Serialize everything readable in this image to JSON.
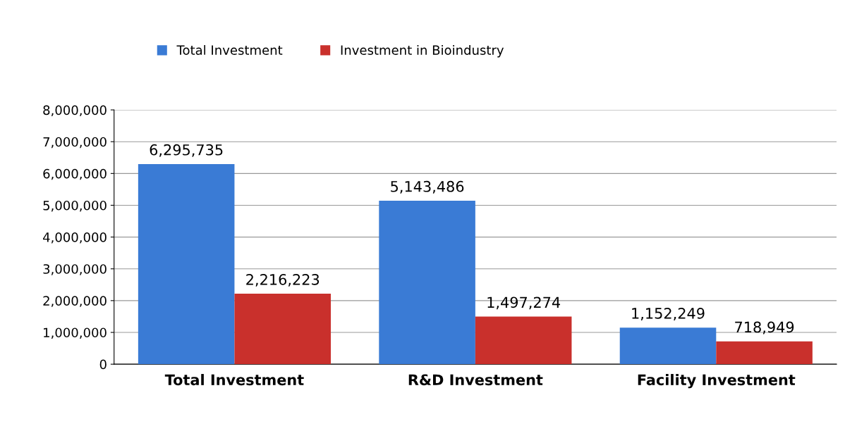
{
  "chart_data": {
    "type": "bar",
    "categories": [
      "Total Investment",
      "R&D Investment",
      "Facility Investment"
    ],
    "series": [
      {
        "name": "Total Investment",
        "color": "#3a7bd5",
        "values": [
          6295735,
          5143486,
          1152249
        ],
        "value_labels": [
          "6,295,735",
          "5,143,486",
          "1,152,249"
        ]
      },
      {
        "name": "Investment in Bioindustry",
        "color": "#c9302c",
        "values": [
          2216223,
          1497274,
          718949
        ],
        "value_labels": [
          "2,216,223",
          "1,497,274",
          "718,949"
        ]
      }
    ],
    "ylim": [
      0,
      8000000
    ],
    "yticks": [
      {
        "value": 0,
        "label": "0"
      },
      {
        "value": 1000000,
        "label": "1,000,000"
      },
      {
        "value": 2000000,
        "label": "2,000,000"
      },
      {
        "value": 3000000,
        "label": "3,000,000"
      },
      {
        "value": 4000000,
        "label": "4,000,000"
      },
      {
        "value": 5000000,
        "label": "5,000,000"
      },
      {
        "value": 6000000,
        "label": "6,000,000"
      },
      {
        "value": 7000000,
        "label": "7,000,000"
      },
      {
        "value": 8000000,
        "label": "8,000,000"
      }
    ],
    "grid": "y",
    "legend": "top"
  }
}
